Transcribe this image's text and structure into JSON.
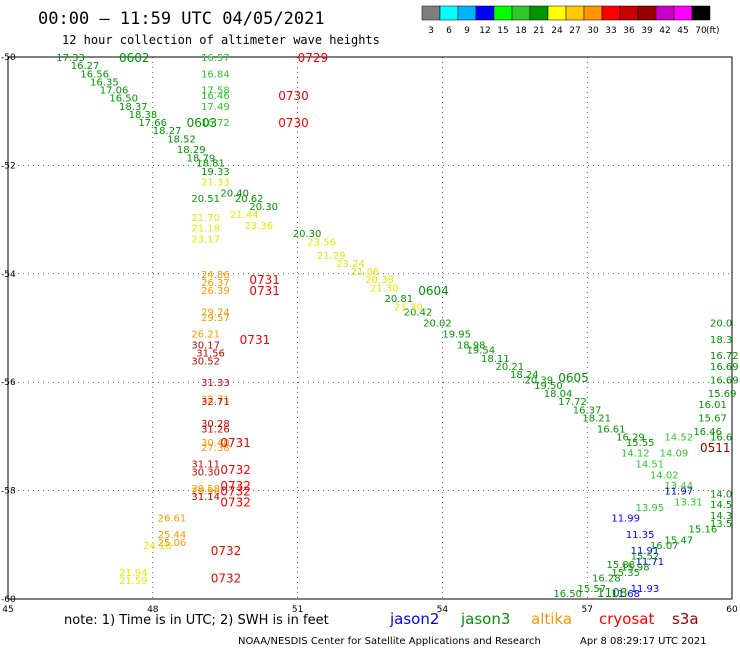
{
  "header": {
    "title": "00:00 – 11:59 UTC 04/05/2021",
    "subtitle": "12 hour collection of altimeter wave heights"
  },
  "colorbar": {
    "unit": "(ft)",
    "ticks": [
      "3",
      "6",
      "9",
      "12",
      "15",
      "18",
      "21",
      "24",
      "27",
      "30",
      "33",
      "36",
      "39",
      "42",
      "45",
      "70"
    ],
    "colors": [
      "#7f7f7f",
      "#00ffff",
      "#00b4ff",
      "#0000ff",
      "#00ff00",
      "#2cc82c",
      "#009600",
      "#ffff00",
      "#ffc800",
      "#ff9600",
      "#ff0000",
      "#c80000",
      "#960000",
      "#c800c8",
      "#ff00ff",
      "#000000"
    ]
  },
  "footer": {
    "note": "note:  1) Time is in UTC;  2) SWH is in feet",
    "satellites": [
      {
        "name": "jason2",
        "color": "#0000ff"
      },
      {
        "name": "jason3",
        "color": "#009600"
      },
      {
        "name": "altika",
        "color": "#ff9600"
      },
      {
        "name": "cryosat",
        "color": "#ff0000"
      },
      {
        "name": "s3a",
        "color": "#960000"
      }
    ],
    "credit": "NOAA/NESDIS Center for Satellite Applications and Research",
    "timestamp": "Apr  8 08:29:17 UTC 2021"
  },
  "chart_data": {
    "type": "scatter",
    "title": "00:00 – 11:59 UTC 04/05/2021",
    "subtitle": "12 hour collection of altimeter wave heights",
    "x_ticks": [
      "45",
      "48",
      "51",
      "54",
      "57",
      "60"
    ],
    "y_ticks": [
      "-50",
      "-52",
      "-54",
      "-56",
      "-58",
      "-60"
    ],
    "xlim": [
      45,
      60
    ],
    "ylim": [
      -60,
      -50
    ],
    "grid": true,
    "legend_position": "bottom",
    "pass_labels": [
      {
        "x": 47.3,
        "y": -50.0,
        "text": "0602",
        "color": "#009600"
      },
      {
        "x": 51.0,
        "y": -50.0,
        "text": "0729",
        "color": "#ff0000"
      },
      {
        "x": 50.6,
        "y": -50.7,
        "text": "0730",
        "color": "#ff0000"
      },
      {
        "x": 50.6,
        "y": -51.2,
        "text": "0730",
        "color": "#ff0000"
      },
      {
        "x": 48.7,
        "y": -51.2,
        "text": "0603",
        "color": "#009600"
      },
      {
        "x": 53.5,
        "y": -54.3,
        "text": "0604",
        "color": "#009600"
      },
      {
        "x": 50.0,
        "y": -54.1,
        "text": "0731",
        "color": "#ff0000"
      },
      {
        "x": 50.0,
        "y": -54.3,
        "text": "0731",
        "color": "#ff0000"
      },
      {
        "x": 49.8,
        "y": -55.2,
        "text": "0731",
        "color": "#ff0000"
      },
      {
        "x": 56.4,
        "y": -55.9,
        "text": "0605",
        "color": "#009600"
      },
      {
        "x": 60.3,
        "y": -57.2,
        "text": "0511",
        "color": "#960000"
      },
      {
        "x": 49.4,
        "y": -57.1,
        "text": "0731",
        "color": "#ff0000"
      },
      {
        "x": 49.4,
        "y": -57.6,
        "text": "0732",
        "color": "#ff0000"
      },
      {
        "x": 49.4,
        "y": -57.9,
        "text": "0732",
        "color": "#ff0000"
      },
      {
        "x": 49.4,
        "y": -58.0,
        "text": "0732",
        "color": "#ff0000"
      },
      {
        "x": 49.4,
        "y": -58.2,
        "text": "0732",
        "color": "#ff0000"
      },
      {
        "x": 49.2,
        "y": -59.1,
        "text": "0732",
        "color": "#ff0000"
      },
      {
        "x": 49.2,
        "y": -59.6,
        "text": "0732",
        "color": "#ff0000"
      },
      {
        "x": 57.2,
        "y": -59.9,
        "text": "1108",
        "color": "#009600"
      }
    ],
    "series": [
      {
        "name": "jason3",
        "color": "#009600",
        "points": [
          {
            "x": 46.0,
            "y": -50.0,
            "v": "17.33"
          },
          {
            "x": 46.3,
            "y": -50.15,
            "v": "16.27"
          },
          {
            "x": 46.5,
            "y": -50.3,
            "v": "16.56"
          },
          {
            "x": 46.7,
            "y": -50.45,
            "v": "16.35"
          },
          {
            "x": 46.9,
            "y": -50.6,
            "v": "17.06"
          },
          {
            "x": 47.1,
            "y": -50.75,
            "v": "16.50"
          },
          {
            "x": 47.3,
            "y": -50.9,
            "v": "18.37"
          },
          {
            "x": 47.5,
            "y": -51.05,
            "v": "18.38"
          },
          {
            "x": 47.7,
            "y": -51.2,
            "v": "17.66"
          },
          {
            "x": 48.0,
            "y": -51.35,
            "v": "18.27"
          },
          {
            "x": 48.3,
            "y": -51.5,
            "v": "18.52"
          },
          {
            "x": 48.5,
            "y": -51.7,
            "v": "18.29"
          },
          {
            "x": 48.7,
            "y": -51.85,
            "v": "18.79"
          },
          {
            "x": 48.9,
            "y": -51.95,
            "v": "18.81"
          },
          {
            "x": 49.0,
            "y": -52.1,
            "v": "19.33"
          },
          {
            "x": 49.4,
            "y": -52.5,
            "v": "20.40"
          },
          {
            "x": 48.8,
            "y": -52.6,
            "v": "20.51"
          },
          {
            "x": 49.7,
            "y": -52.6,
            "v": "20.62"
          },
          {
            "x": 50.0,
            "y": -52.75,
            "v": "20.30"
          },
          {
            "x": 50.9,
            "y": -53.25,
            "v": "20.30"
          },
          {
            "x": 52.8,
            "y": -54.45,
            "v": "20.81"
          },
          {
            "x": 53.2,
            "y": -54.7,
            "v": "20.42"
          },
          {
            "x": 53.6,
            "y": -54.9,
            "v": "20.02"
          },
          {
            "x": 54.0,
            "y": -55.1,
            "v": "19.95"
          },
          {
            "x": 54.3,
            "y": -55.3,
            "v": "18.98"
          },
          {
            "x": 54.5,
            "y": -55.4,
            "v": "19.54"
          },
          {
            "x": 54.8,
            "y": -55.55,
            "v": "18.11"
          },
          {
            "x": 55.1,
            "y": -55.7,
            "v": "20.21"
          },
          {
            "x": 55.4,
            "y": -55.85,
            "v": "18.24"
          },
          {
            "x": 55.7,
            "y": -55.95,
            "v": "20.39"
          },
          {
            "x": 55.9,
            "y": -56.05,
            "v": "19.50"
          },
          {
            "x": 56.1,
            "y": -56.2,
            "v": "18.04"
          },
          {
            "x": 56.4,
            "y": -56.35,
            "v": "17.72"
          },
          {
            "x": 56.7,
            "y": -56.5,
            "v": "16.37"
          },
          {
            "x": 56.9,
            "y": -56.65,
            "v": "18.21"
          },
          {
            "x": 57.2,
            "y": -56.85,
            "v": "16.61"
          },
          {
            "x": 57.6,
            "y": -57.0,
            "v": "16.29"
          },
          {
            "x": 57.8,
            "y": -57.1,
            "v": "15.55"
          },
          {
            "x": 59.2,
            "y": -56.9,
            "v": "16.46"
          },
          {
            "x": 59.3,
            "y": -56.65,
            "v": "15.67"
          },
          {
            "x": 59.3,
            "y": -56.4,
            "v": "16.01"
          },
          {
            "x": 59.5,
            "y": -56.2,
            "v": "15.69"
          },
          {
            "x": 59.6,
            "y": -55.95,
            "v": "16.69"
          },
          {
            "x": 59.7,
            "y": -55.7,
            "v": "16.69"
          },
          {
            "x": 57.4,
            "y": -59.35,
            "v": "15.88"
          },
          {
            "x": 57.1,
            "y": -59.6,
            "v": "16.28"
          },
          {
            "x": 56.8,
            "y": -59.8,
            "v": "15.57"
          },
          {
            "x": 56.3,
            "y": -59.9,
            "v": "16.50"
          }
        ]
      },
      {
        "name": "jason3-light",
        "color": "#2cc82c",
        "points": [
          {
            "x": 49.0,
            "y": -50.0,
            "v": "16.57"
          },
          {
            "x": 49.0,
            "y": -50.3,
            "v": "16.84"
          },
          {
            "x": 49.0,
            "y": -50.6,
            "v": "17.58"
          },
          {
            "x": 49.0,
            "y": -50.7,
            "v": "16.46"
          },
          {
            "x": 49.0,
            "y": -50.9,
            "v": "17.49"
          },
          {
            "x": 49.0,
            "y": -51.2,
            "v": "16.72"
          },
          {
            "x": 57.7,
            "y": -57.3,
            "v": "14.12"
          },
          {
            "x": 58.0,
            "y": -57.5,
            "v": "14.51"
          },
          {
            "x": 58.5,
            "y": -57.3,
            "v": "14.09"
          },
          {
            "x": 58.6,
            "y": -57.0,
            "v": "14.52"
          },
          {
            "x": 58.3,
            "y": -57.7,
            "v": "14.02"
          },
          {
            "x": 58.6,
            "y": -57.9,
            "v": "13.44"
          },
          {
            "x": 58.0,
            "y": -58.3,
            "v": "13.95"
          },
          {
            "x": 58.8,
            "y": -58.2,
            "v": "13.31"
          }
        ]
      },
      {
        "name": "yellow",
        "color": "#e8e800",
        "points": [
          {
            "x": 49.0,
            "y": -52.3,
            "v": "21.33"
          },
          {
            "x": 49.6,
            "y": -52.9,
            "v": "21.44"
          },
          {
            "x": 48.8,
            "y": -52.95,
            "v": "21.70"
          },
          {
            "x": 49.9,
            "y": -53.1,
            "v": "23.36"
          },
          {
            "x": 48.8,
            "y": -53.15,
            "v": "21.18"
          },
          {
            "x": 48.8,
            "y": -53.35,
            "v": "23.17"
          },
          {
            "x": 51.2,
            "y": -53.4,
            "v": "23.56"
          },
          {
            "x": 51.4,
            "y": -53.65,
            "v": "21.29"
          },
          {
            "x": 51.8,
            "y": -53.8,
            "v": "23.24"
          },
          {
            "x": 52.1,
            "y": -53.95,
            "v": "21.06"
          },
          {
            "x": 52.4,
            "y": -54.1,
            "v": "20.38"
          },
          {
            "x": 52.5,
            "y": -54.25,
            "v": "21.30"
          },
          {
            "x": 53.0,
            "y": -54.6,
            "v": "21.30"
          },
          {
            "x": 47.8,
            "y": -59.0,
            "v": "24.18"
          },
          {
            "x": 47.3,
            "y": -59.5,
            "v": "21.94"
          },
          {
            "x": 47.3,
            "y": -59.65,
            "v": "21.59"
          }
        ]
      },
      {
        "name": "altika",
        "color": "#ff9600",
        "points": [
          {
            "x": 49.0,
            "y": -54.0,
            "v": "24.86"
          },
          {
            "x": 49.0,
            "y": -54.15,
            "v": "26.37"
          },
          {
            "x": 49.0,
            "y": -54.3,
            "v": "26.39"
          },
          {
            "x": 49.0,
            "y": -54.7,
            "v": "29.74"
          },
          {
            "x": 49.0,
            "y": -54.8,
            "v": "29.57"
          },
          {
            "x": 48.8,
            "y": -55.1,
            "v": "26.21"
          },
          {
            "x": 49.0,
            "y": -56.3,
            "v": "32.71"
          },
          {
            "x": 49.0,
            "y": -57.1,
            "v": "30.40"
          },
          {
            "x": 49.0,
            "y": -57.2,
            "v": "27.38"
          },
          {
            "x": 48.8,
            "y": -57.95,
            "v": "29.58"
          },
          {
            "x": 48.8,
            "y": -58.0,
            "v": "28.56"
          },
          {
            "x": 48.1,
            "y": -58.5,
            "v": "26.61"
          },
          {
            "x": 48.1,
            "y": -58.8,
            "v": "25.44"
          },
          {
            "x": 48.1,
            "y": -58.95,
            "v": "25.06"
          }
        ]
      },
      {
        "name": "cryosat",
        "color": "#c80000",
        "points": [
          {
            "x": 48.8,
            "y": -55.3,
            "v": "30.17"
          },
          {
            "x": 48.9,
            "y": -55.45,
            "v": "31.56"
          },
          {
            "x": 48.8,
            "y": -55.6,
            "v": "30.52"
          },
          {
            "x": 49.0,
            "y": -56.0,
            "v": "31.33"
          },
          {
            "x": 49.0,
            "y": -56.35,
            "v": "32.71"
          },
          {
            "x": 49.0,
            "y": -56.75,
            "v": "30.28"
          },
          {
            "x": 49.0,
            "y": -56.85,
            "v": "31.26"
          },
          {
            "x": 48.8,
            "y": -57.5,
            "v": "31.11"
          },
          {
            "x": 48.8,
            "y": -57.65,
            "v": "30.30"
          },
          {
            "x": 48.8,
            "y": -58.1,
            "v": "31.14"
          }
        ]
      },
      {
        "name": "jason2",
        "color": "#0000ff",
        "points": [
          {
            "x": 58.6,
            "y": -58.0,
            "v": "11.97"
          },
          {
            "x": 57.5,
            "y": -58.5,
            "v": "11.99"
          },
          {
            "x": 57.8,
            "y": -58.8,
            "v": "11.35"
          },
          {
            "x": 57.9,
            "y": -59.1,
            "v": "11.91"
          },
          {
            "x": 58.0,
            "y": -59.3,
            "v": "11.71"
          },
          {
            "x": 57.9,
            "y": -59.8,
            "v": "11.93"
          },
          {
            "x": 57.5,
            "y": -59.9,
            "v": "11.68"
          }
        ]
      },
      {
        "name": "jason3-right",
        "color": "#009600",
        "points": [
          {
            "x": 60.1,
            "y": -54.9,
            "v": "20.0"
          },
          {
            "x": 60.1,
            "y": -55.2,
            "v": "18.3"
          },
          {
            "x": 59.8,
            "y": -55.5,
            "v": "16.72"
          },
          {
            "x": 60.0,
            "y": -57.0,
            "v": "16.6"
          },
          {
            "x": 59.8,
            "y": -58.05,
            "v": "14.0"
          },
          {
            "x": 59.8,
            "y": -58.25,
            "v": "14.5"
          },
          {
            "x": 59.8,
            "y": -58.45,
            "v": "14.3"
          },
          {
            "x": 59.8,
            "y": -58.6,
            "v": "13.5"
          },
          {
            "x": 59.1,
            "y": -58.7,
            "v": "15.16"
          },
          {
            "x": 58.6,
            "y": -58.9,
            "v": "15.47"
          },
          {
            "x": 58.3,
            "y": -59.0,
            "v": "16.07"
          },
          {
            "x": 57.9,
            "y": -59.2,
            "v": "15.52"
          },
          {
            "x": 57.7,
            "y": -59.4,
            "v": "15.98"
          },
          {
            "x": 57.5,
            "y": -59.5,
            "v": "15.35"
          }
        ]
      }
    ]
  }
}
